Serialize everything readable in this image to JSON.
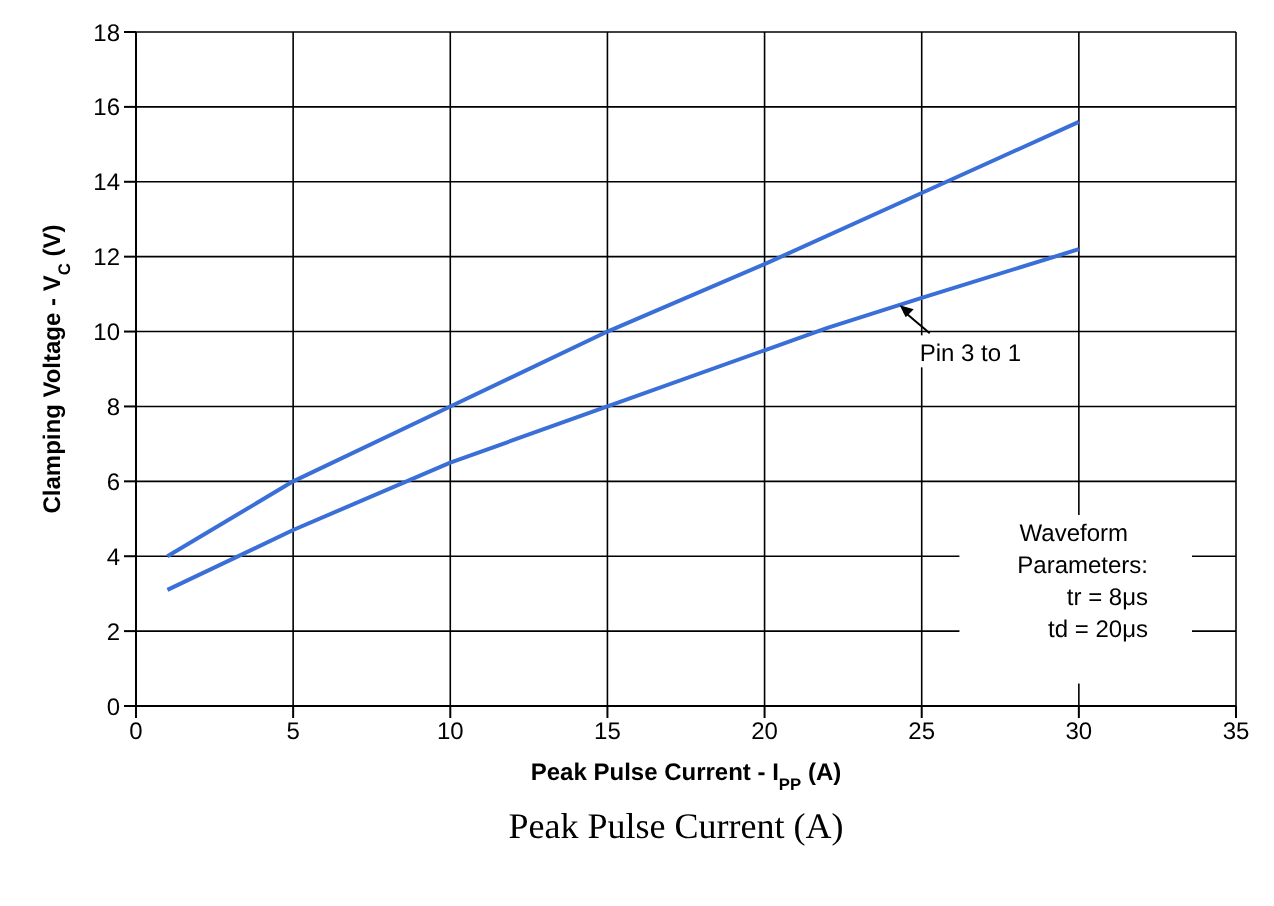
{
  "chart_data": {
    "type": "line",
    "xlabel": "Peak Pulse Current - I$_{PP}$ (A)",
    "ylabel": "Clamping Voltage - V$_{C}$ (V)",
    "xlim": [
      0,
      35
    ],
    "xticks": [
      0,
      5,
      10,
      15,
      20,
      25,
      30,
      35
    ],
    "ylim": [
      0,
      18
    ],
    "yticks": [
      0,
      2,
      4,
      6,
      8,
      10,
      12,
      14,
      16,
      18
    ],
    "grid": true,
    "series": [
      {
        "color": "#3a6fd8",
        "x": [
          1,
          5,
          10,
          15,
          20,
          25,
          30
        ],
        "values": [
          4.0,
          6.0,
          8.0,
          10.0,
          11.8,
          13.7,
          15.6
        ]
      },
      {
        "color": "#3a6fd8",
        "x": [
          1,
          5,
          10,
          15,
          20,
          22,
          25,
          30
        ],
        "values": [
          3.1,
          4.7,
          6.5,
          8.0,
          9.5,
          10.1,
          10.9,
          12.2
        ]
      }
    ],
    "annotations": [
      {
        "text": "Pin 3 to 1",
        "x": 24.3,
        "y": 10.7
      },
      "Waveform\nParameters:\ntr = 8μs\ntd = 20μs",
      "Peak Pulse Current (A)"
    ]
  }
}
